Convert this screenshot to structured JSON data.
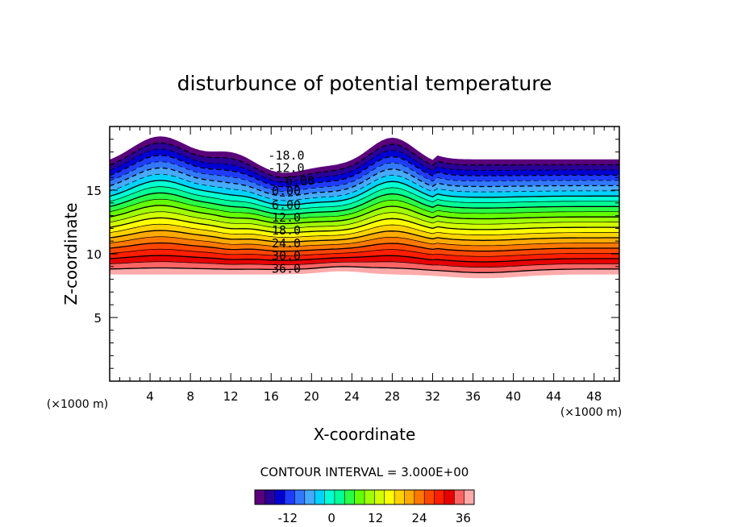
{
  "chart_data": {
    "type": "contour",
    "title": "disturbunce of potential temperature",
    "xlabel": "X-coordinate",
    "ylabel": "Z-coordinate",
    "x_unit_label": "(×1000 m)",
    "y_unit_label": "(×1000 m)",
    "xlim": [
      0,
      50.5
    ],
    "ylim": [
      0,
      20
    ],
    "x_ticks": [
      4,
      8,
      12,
      16,
      20,
      24,
      28,
      32,
      36,
      40,
      44,
      48
    ],
    "y_ticks": [
      5,
      10,
      15
    ],
    "contour_interval_text": "CONTOUR INTERVAL = 3.000E+00",
    "contour_interval": 3.0,
    "value_range": [
      -21,
      39
    ],
    "contour_labels": [
      {
        "text": "-18.0",
        "x": 17.5,
        "z": 17.8
      },
      {
        "text": "-12.0",
        "x": 17.5,
        "z": 16.8
      },
      {
        "text": "-6.00",
        "x": 18.5,
        "z": 15.8
      },
      {
        "text": "0.00",
        "x": 17.5,
        "z": 15.0
      },
      {
        "text": "6.00",
        "x": 17.5,
        "z": 13.9
      },
      {
        "text": "12.0",
        "x": 17.5,
        "z": 12.9
      },
      {
        "text": "18.0",
        "x": 17.5,
        "z": 11.9
      },
      {
        "text": "24.0",
        "x": 17.5,
        "z": 10.9
      },
      {
        "text": "30.0",
        "x": 17.5,
        "z": 9.9
      },
      {
        "text": "36.0",
        "x": 17.5,
        "z": 8.9
      }
    ],
    "colorbar": {
      "ticks": [
        -12,
        0,
        12,
        24,
        36
      ],
      "colors": [
        "#5a007a",
        "#2a0096",
        "#0000d2",
        "#1e3cff",
        "#3278ff",
        "#46aaff",
        "#00d2ff",
        "#00ffd2",
        "#00ff96",
        "#28ff46",
        "#64ff00",
        "#a0ff00",
        "#d2ff00",
        "#ffff00",
        "#ffd200",
        "#ffaa00",
        "#ff7800",
        "#ff4600",
        "#ff1e00",
        "#e60000",
        "#ff6464",
        "#ffaaaa"
      ]
    }
  }
}
